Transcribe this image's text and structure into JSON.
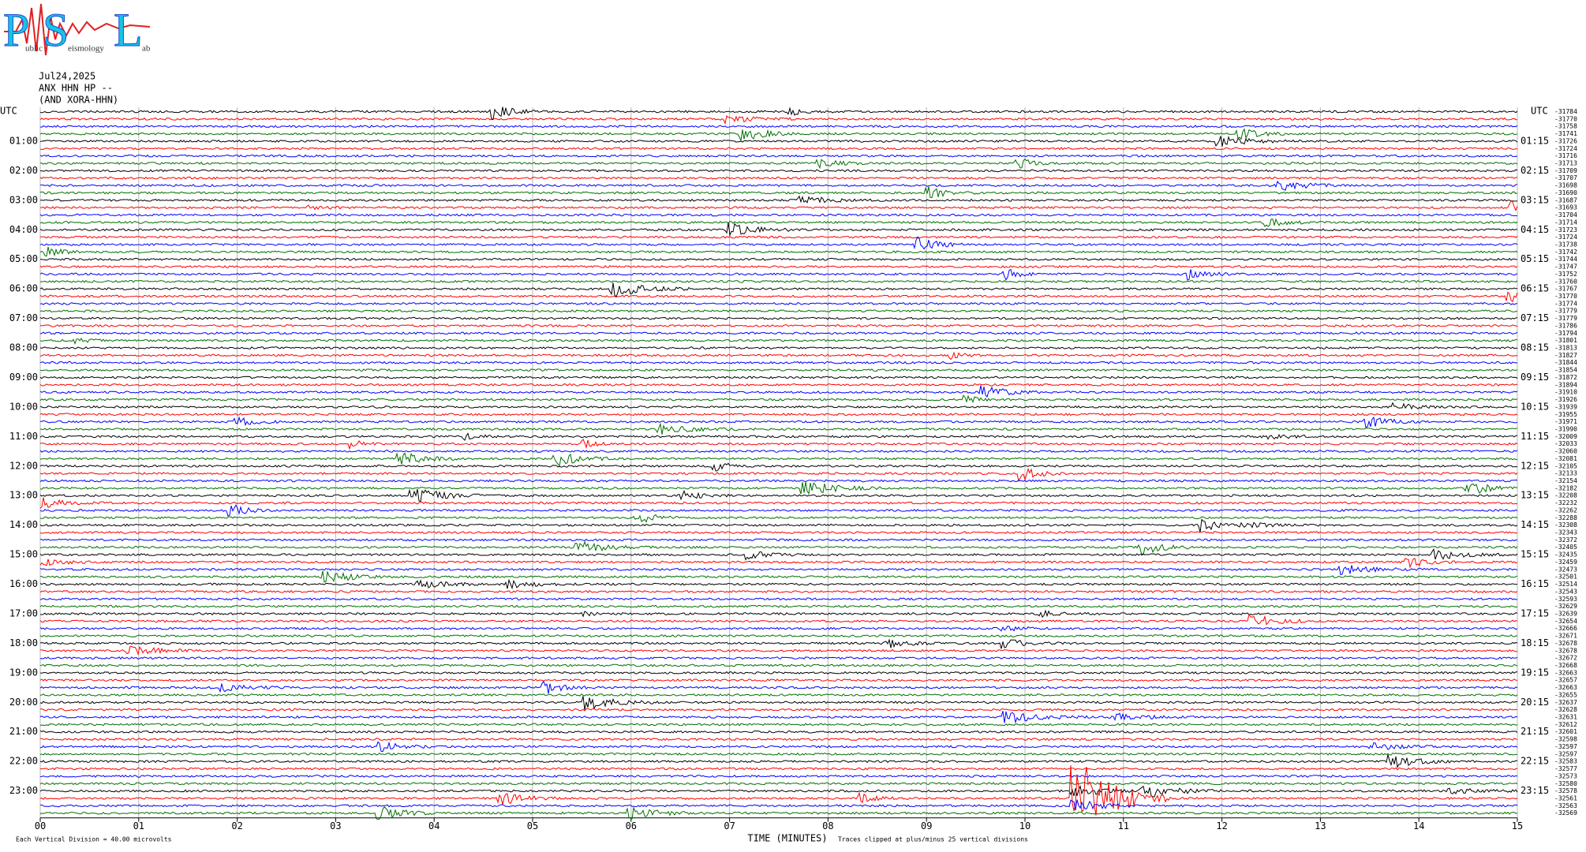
{
  "logo": {
    "parts": [
      "P",
      "ublic",
      "S",
      "eismology",
      "L",
      "ab"
    ]
  },
  "header": {
    "date": "Jul24,2025",
    "station": "ANX HHN HP --",
    "network": "(AND XORA-HHN)"
  },
  "axis": {
    "left_title": "UTC",
    "right_title": "UTC",
    "left_labels": [
      "01:00",
      "02:00",
      "03:00",
      "04:00",
      "05:00",
      "06:00",
      "07:00",
      "08:00",
      "09:00",
      "10:00",
      "11:00",
      "12:00",
      "13:00",
      "14:00",
      "15:00",
      "16:00",
      "17:00",
      "18:00",
      "19:00",
      "20:00",
      "21:00",
      "22:00",
      "23:00"
    ],
    "right_labels": [
      "01:15",
      "02:15",
      "03:15",
      "04:15",
      "05:15",
      "06:15",
      "07:15",
      "08:15",
      "09:15",
      "10:15",
      "11:15",
      "12:15",
      "13:15",
      "14:15",
      "15:15",
      "16:15",
      "17:15",
      "18:15",
      "19:15",
      "20:15",
      "21:15",
      "22:15",
      "23:15"
    ],
    "x_title": "TIME (MINUTES)",
    "x_ticks": [
      "00",
      "01",
      "02",
      "03",
      "04",
      "05",
      "06",
      "07",
      "08",
      "09",
      "10",
      "11",
      "12",
      "13",
      "14",
      "15"
    ]
  },
  "trace_colors": [
    "#000000",
    "#ff0000",
    "#0000ff",
    "#007000"
  ],
  "trace_offsets": [
    -31784,
    -31770,
    -31758,
    -31741,
    -31726,
    -31724,
    -31716,
    -31713,
    -31709,
    -31707,
    -31698,
    -31690,
    -31687,
    -31693,
    -31704,
    -31714,
    -31723,
    -31724,
    -31738,
    -31742,
    -31744,
    -31747,
    -31752,
    -31760,
    -31767,
    -31770,
    -31774,
    -31779,
    -31779,
    -31786,
    -31794,
    -31801,
    -31813,
    -31827,
    -31844,
    -31854,
    -31872,
    -31894,
    -31910,
    -31926,
    -31939,
    -31955,
    -31971,
    -31990,
    -32009,
    -32033,
    -32060,
    -32081,
    -32105,
    -32133,
    -32154,
    -32182,
    -32208,
    -32232,
    -32262,
    -32288,
    -32308,
    -32343,
    -32372,
    -32405,
    -32435,
    -32459,
    -32473,
    -32501,
    -32514,
    -32543,
    -32593,
    -32629,
    -32639,
    -32654,
    -32666,
    -32671,
    -32678,
    -32678,
    -32672,
    -32668,
    -32663,
    -32657,
    -32663,
    -32655,
    -32637,
    -32628,
    -32631,
    -32612,
    -32601,
    -32598,
    -32597,
    -32597,
    -32583,
    -32577,
    -32573,
    -32580,
    -32578,
    -32561,
    -32563,
    -32569
  ],
  "footer": {
    "division": "Each Vertical Division =   40.00 microvolts",
    "clip": "Traces clipped at plus/minus 25 vertical divisions"
  }
}
